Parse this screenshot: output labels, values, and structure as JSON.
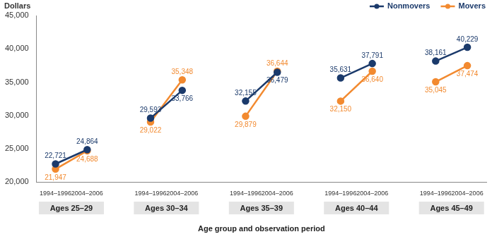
{
  "chart_data": {
    "type": "line",
    "y_label": "Dollars",
    "x_label": "Age group and observation period",
    "categories": [
      "1994–1996",
      "2004–2006",
      null,
      "1994–1996",
      "2004–2006",
      null,
      "1994–1996",
      "2004–2006",
      null,
      "1994–1996",
      "2004–2006",
      null,
      "1994–1996",
      "2004–2006"
    ],
    "groups": [
      "Ages 25–29",
      "Ages 30–34",
      "Ages 35–39",
      "Ages 40–44",
      "Ages 45–49"
    ],
    "series": [
      {
        "name": "Nonmovers",
        "color": "#1b3a6b",
        "marker": "circle",
        "values": [
          22721,
          24864,
          null,
          29593,
          33766,
          null,
          32155,
          36479,
          null,
          35631,
          37791,
          null,
          38161,
          40229
        ],
        "value_labels": [
          "22,721",
          "24,864",
          null,
          "29,593",
          "33,766",
          null,
          "32,155",
          "36,479",
          null,
          "35,631",
          "37,791",
          null,
          "38,161",
          "40,229"
        ]
      },
      {
        "name": "Movers",
        "color": "#f28a30",
        "marker": "circle",
        "values": [
          21947,
          24688,
          null,
          29022,
          35348,
          null,
          29879,
          36644,
          null,
          32150,
          36640,
          null,
          35045,
          37474
        ],
        "value_labels": [
          "21,947",
          "24,688",
          null,
          "29,022",
          "35,348",
          null,
          "29,879",
          "36,644",
          null,
          "32,150",
          "36,640",
          null,
          "35,045",
          "37,474"
        ]
      }
    ],
    "ylim": [
      20000,
      45000
    ],
    "yticks": [
      {
        "value": 20000,
        "label": "20,000"
      },
      {
        "value": 25000,
        "label": "25,000"
      },
      {
        "value": 30000,
        "label": "30,000"
      },
      {
        "value": 35000,
        "label": "35,000"
      },
      {
        "value": 40000,
        "label": "40,000"
      },
      {
        "value": 45000,
        "label": "45,000"
      }
    ],
    "grid": false,
    "legend": "top-right",
    "data_labels": true
  }
}
